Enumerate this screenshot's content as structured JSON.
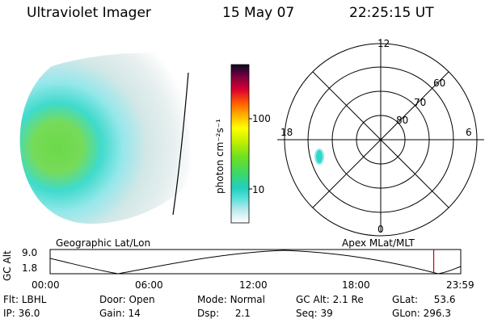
{
  "header": {
    "title": "Ultraviolet Imager",
    "date": "15 May 07",
    "time": "22:25:15 UT"
  },
  "colorbar": {
    "unit_label": "photon cm⁻²s⁻¹",
    "ticks": [
      "100",
      "10"
    ]
  },
  "polar_plot": {
    "mlt_labels": {
      "top": "12",
      "left": "18",
      "right": "6",
      "bottom": "0"
    },
    "lat_labels": [
      "60",
      "70",
      "80"
    ]
  },
  "map_labels": {
    "left": "Geographic Lat/Lon",
    "right": "Apex MLat/MLT"
  },
  "altitude_plot": {
    "axis_title": "GC Alt",
    "y_ticks": [
      "9.0",
      "1.8"
    ],
    "x_ticks": [
      "00:00",
      "06:00",
      "12:00",
      "18:00",
      "23:59"
    ],
    "current_time_marker_hours": 22.42
  },
  "status": {
    "filter": {
      "label": "Flt:",
      "value": "LBHL"
    },
    "ip": {
      "label": "IP:",
      "value": "36.0"
    },
    "door": {
      "label": "Door:",
      "value": "Open"
    },
    "gain": {
      "label": "Gain:",
      "value": "14"
    },
    "mode": {
      "label": "Mode:",
      "value": "Normal"
    },
    "dsp": {
      "label": "Dsp:",
      "value": "2.1"
    },
    "gc_alt": {
      "label": "GC Alt:",
      "value": "2.1 Re"
    },
    "seq": {
      "label": "Seq:",
      "value": "39"
    },
    "glat": {
      "label": "GLat:",
      "value": "53.6"
    },
    "glon": {
      "label": "GLon:",
      "value": "296.3"
    }
  },
  "colors": {
    "background": "#ffffff",
    "foreground": "#000000",
    "time_marker": "#cc0000",
    "aurora_bright": "#5fd63a",
    "aurora_mid": "#2fd8c8",
    "aurora_faint": "#cfe6e6"
  }
}
